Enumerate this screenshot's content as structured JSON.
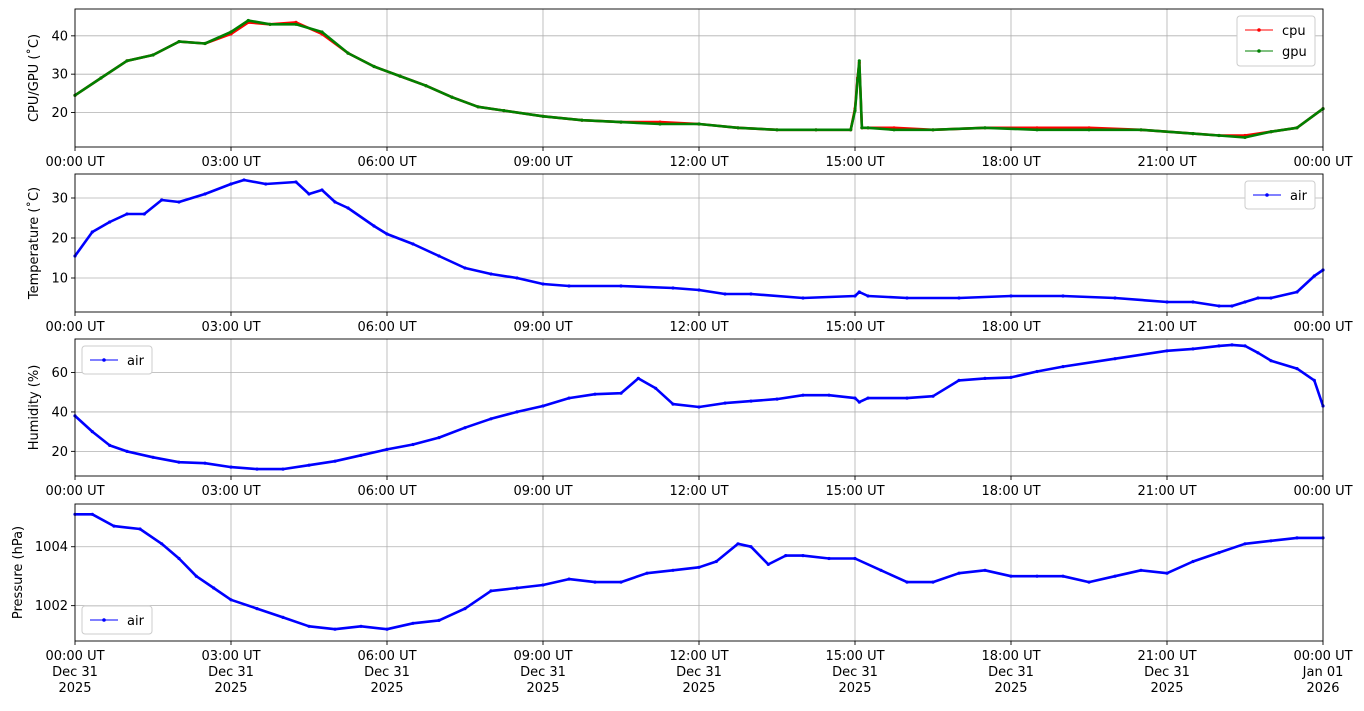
{
  "chart_data": [
    {
      "type": "line",
      "ylabel": "CPU/GPU (˚C)",
      "ylim": [
        11,
        47
      ],
      "yticks": [
        20,
        30,
        40
      ],
      "xlim": [
        "2025-12-31 00:00",
        "2026-01-01 00:00"
      ],
      "xtick_labels": [
        "00:00 UT",
        "03:00 UT",
        "06:00 UT",
        "09:00 UT",
        "12:00 UT",
        "15:00 UT",
        "18:00 UT",
        "21:00 UT",
        "00:00 UT"
      ],
      "grid": true,
      "legend": "upper right",
      "series": [
        {
          "name": "cpu",
          "color": "#ff0000",
          "x": [
            "00:00",
            "00:30",
            "01:00",
            "01:30",
            "02:00",
            "02:30",
            "03:00",
            "03:20",
            "03:45",
            "04:15",
            "04:45",
            "05:15",
            "05:45",
            "06:15",
            "06:45",
            "07:15",
            "07:45",
            "08:15",
            "09:00",
            "09:45",
            "10:30",
            "11:15",
            "12:00",
            "12:45",
            "13:30",
            "14:15",
            "14:55",
            "15:00",
            "15:03",
            "15:05",
            "15:08",
            "15:15",
            "15:45",
            "16:30",
            "17:30",
            "18:30",
            "19:30",
            "20:30",
            "21:30",
            "22:00",
            "22:30",
            "23:00",
            "23:30",
            "00:00"
          ],
          "values": [
            24.5,
            29,
            33.5,
            35,
            38.5,
            38,
            40.5,
            43.5,
            43,
            43.5,
            40.5,
            35.5,
            32,
            29.5,
            27,
            24,
            21.5,
            20.5,
            19,
            18,
            17.5,
            17.5,
            17,
            16,
            15.5,
            15.5,
            15.5,
            21,
            29,
            33,
            16,
            16,
            16,
            15.5,
            16,
            16,
            16,
            15.5,
            14.5,
            14,
            14,
            15,
            16,
            21
          ]
        },
        {
          "name": "gpu",
          "color": "#008000",
          "x": [
            "00:00",
            "00:30",
            "01:00",
            "01:30",
            "02:00",
            "02:30",
            "03:00",
            "03:20",
            "03:45",
            "04:15",
            "04:45",
            "05:15",
            "05:45",
            "06:15",
            "06:45",
            "07:15",
            "07:45",
            "08:15",
            "09:00",
            "09:45",
            "10:30",
            "11:15",
            "12:00",
            "12:45",
            "13:30",
            "14:15",
            "14:55",
            "15:00",
            "15:03",
            "15:05",
            "15:08",
            "15:15",
            "15:45",
            "16:30",
            "17:30",
            "18:30",
            "19:30",
            "20:30",
            "21:30",
            "22:00",
            "22:30",
            "23:00",
            "23:30",
            "00:00"
          ],
          "values": [
            24.5,
            29,
            33.5,
            35,
            38.5,
            38,
            41,
            44,
            43,
            43,
            41,
            35.5,
            32,
            29.5,
            27,
            24,
            21.5,
            20.5,
            19,
            18,
            17.5,
            17,
            17,
            16,
            15.5,
            15.5,
            15.5,
            20.5,
            28.5,
            33.5,
            16,
            16,
            15.5,
            15.5,
            16,
            15.5,
            15.5,
            15.5,
            14.5,
            14,
            13.5,
            15,
            16,
            21
          ]
        }
      ]
    },
    {
      "type": "line",
      "ylabel": "Temperature (˚C)",
      "ylim": [
        1.5,
        36
      ],
      "yticks": [
        10,
        20,
        30
      ],
      "xlim": [
        "2025-12-31 00:00",
        "2026-01-01 00:00"
      ],
      "xtick_labels": [
        "00:00 UT",
        "03:00 UT",
        "06:00 UT",
        "09:00 UT",
        "12:00 UT",
        "15:00 UT",
        "18:00 UT",
        "21:00 UT",
        "00:00 UT"
      ],
      "grid": true,
      "legend": "upper right",
      "series": [
        {
          "name": "air",
          "color": "#0000ff",
          "x": [
            "00:00",
            "00:20",
            "00:40",
            "01:00",
            "01:20",
            "01:40",
            "02:00",
            "02:30",
            "03:00",
            "03:15",
            "03:40",
            "04:15",
            "04:30",
            "04:45",
            "05:00",
            "05:15",
            "05:45",
            "06:00",
            "06:30",
            "07:00",
            "07:30",
            "08:00",
            "08:30",
            "09:00",
            "09:30",
            "10:30",
            "11:30",
            "12:00",
            "12:30",
            "13:00",
            "14:00",
            "15:00",
            "15:05",
            "15:15",
            "16:00",
            "17:00",
            "18:00",
            "19:00",
            "20:00",
            "21:00",
            "21:30",
            "22:00",
            "22:15",
            "22:30",
            "22:45",
            "23:00",
            "23:30",
            "23:50",
            "00:00"
          ],
          "values": [
            15.5,
            21.5,
            24,
            26,
            26,
            29.5,
            29,
            31,
            33.5,
            34.5,
            33.5,
            34,
            31,
            32,
            29,
            27.5,
            23,
            21,
            18.5,
            15.5,
            12.5,
            11,
            10,
            8.5,
            8,
            8,
            7.5,
            7,
            6,
            6,
            5,
            5.5,
            6.5,
            5.5,
            5,
            5,
            5.5,
            5.5,
            5,
            4,
            4,
            3,
            3,
            4,
            5,
            5,
            6.5,
            10.5,
            12
          ]
        }
      ]
    },
    {
      "type": "line",
      "ylabel": "Humidity (%)",
      "ylim": [
        7.5,
        77
      ],
      "yticks": [
        20,
        40,
        60
      ],
      "xlim": [
        "2025-12-31 00:00",
        "2026-01-01 00:00"
      ],
      "xtick_labels": [
        "00:00 UT",
        "03:00 UT",
        "06:00 UT",
        "09:00 UT",
        "12:00 UT",
        "15:00 UT",
        "18:00 UT",
        "21:00 UT",
        "00:00 UT"
      ],
      "grid": true,
      "legend": "upper left",
      "series": [
        {
          "name": "air",
          "color": "#0000ff",
          "x": [
            "00:00",
            "00:20",
            "00:40",
            "01:00",
            "01:30",
            "02:00",
            "02:30",
            "03:00",
            "03:30",
            "04:00",
            "04:30",
            "05:00",
            "05:30",
            "06:00",
            "06:30",
            "07:00",
            "07:30",
            "08:00",
            "08:30",
            "09:00",
            "09:30",
            "10:00",
            "10:30",
            "10:50",
            "11:10",
            "11:30",
            "12:00",
            "12:30",
            "13:00",
            "13:30",
            "14:00",
            "14:30",
            "15:00",
            "15:05",
            "15:15",
            "16:00",
            "16:30",
            "17:00",
            "17:30",
            "18:00",
            "18:30",
            "19:00",
            "20:00",
            "21:00",
            "21:30",
            "22:00",
            "22:15",
            "22:30",
            "22:45",
            "23:00",
            "23:30",
            "23:50",
            "00:00"
          ],
          "values": [
            38,
            30,
            23,
            20,
            17,
            14.5,
            14,
            12,
            11,
            11,
            13,
            15,
            18,
            21,
            23.5,
            27,
            32,
            36.5,
            40,
            43,
            47,
            49,
            49.5,
            57,
            52,
            44,
            42.5,
            44.5,
            45.5,
            46.5,
            48.5,
            48.5,
            47,
            45,
            47,
            47,
            48,
            56,
            57,
            57.5,
            60.5,
            63,
            67,
            71,
            72,
            73.5,
            74,
            73.5,
            70,
            66,
            62,
            56,
            43
          ]
        }
      ]
    },
    {
      "type": "line",
      "ylabel": "Pressure (hPa)",
      "ylim": [
        1000.8,
        1005.45
      ],
      "yticks": [
        1002,
        1004
      ],
      "xlim": [
        "2025-12-31 00:00",
        "2026-01-01 00:00"
      ],
      "xtick_labels": [
        "00:00 UT\nDec 31\n2025",
        "03:00 UT\nDec 31\n2025",
        "06:00 UT\nDec 31\n2025",
        "09:00 UT\nDec 31\n2025",
        "12:00 UT\nDec 31\n2025",
        "15:00 UT\nDec 31\n2025",
        "18:00 UT\nDec 31\n2025",
        "21:00 UT\nDec 31\n2025",
        "00:00 UT\nJan 01\n2026"
      ],
      "grid": true,
      "legend": "lower left",
      "series": [
        {
          "name": "air",
          "color": "#0000ff",
          "x": [
            "00:00",
            "00:20",
            "00:45",
            "01:15",
            "01:40",
            "02:00",
            "02:20",
            "02:40",
            "03:00",
            "03:30",
            "04:00",
            "04:30",
            "05:00",
            "05:30",
            "06:00",
            "06:30",
            "07:00",
            "07:30",
            "08:00",
            "08:30",
            "09:00",
            "09:30",
            "10:00",
            "10:30",
            "11:00",
            "11:30",
            "12:00",
            "12:20",
            "12:45",
            "13:00",
            "13:20",
            "13:40",
            "14:00",
            "14:30",
            "15:00",
            "15:30",
            "16:00",
            "16:30",
            "17:00",
            "17:30",
            "18:00",
            "18:30",
            "19:00",
            "19:30",
            "20:00",
            "20:30",
            "21:00",
            "21:30",
            "22:00",
            "22:30",
            "23:00",
            "23:30",
            "00:00"
          ],
          "values": [
            1005.1,
            1005.1,
            1004.7,
            1004.6,
            1004.1,
            1003.6,
            1003.0,
            1002.6,
            1002.2,
            1001.9,
            1001.6,
            1001.3,
            1001.2,
            1001.3,
            1001.2,
            1001.4,
            1001.5,
            1001.9,
            1002.5,
            1002.6,
            1002.7,
            1002.9,
            1002.8,
            1002.8,
            1003.1,
            1003.2,
            1003.3,
            1003.5,
            1004.1,
            1004.0,
            1003.4,
            1003.7,
            1003.7,
            1003.6,
            1003.6,
            1003.2,
            1002.8,
            1002.8,
            1003.1,
            1003.2,
            1003.0,
            1003.0,
            1003.0,
            1002.8,
            1003.0,
            1003.2,
            1003.1,
            1003.5,
            1003.8,
            1004.1,
            1004.2,
            1004.3,
            1004.3
          ]
        }
      ]
    }
  ]
}
